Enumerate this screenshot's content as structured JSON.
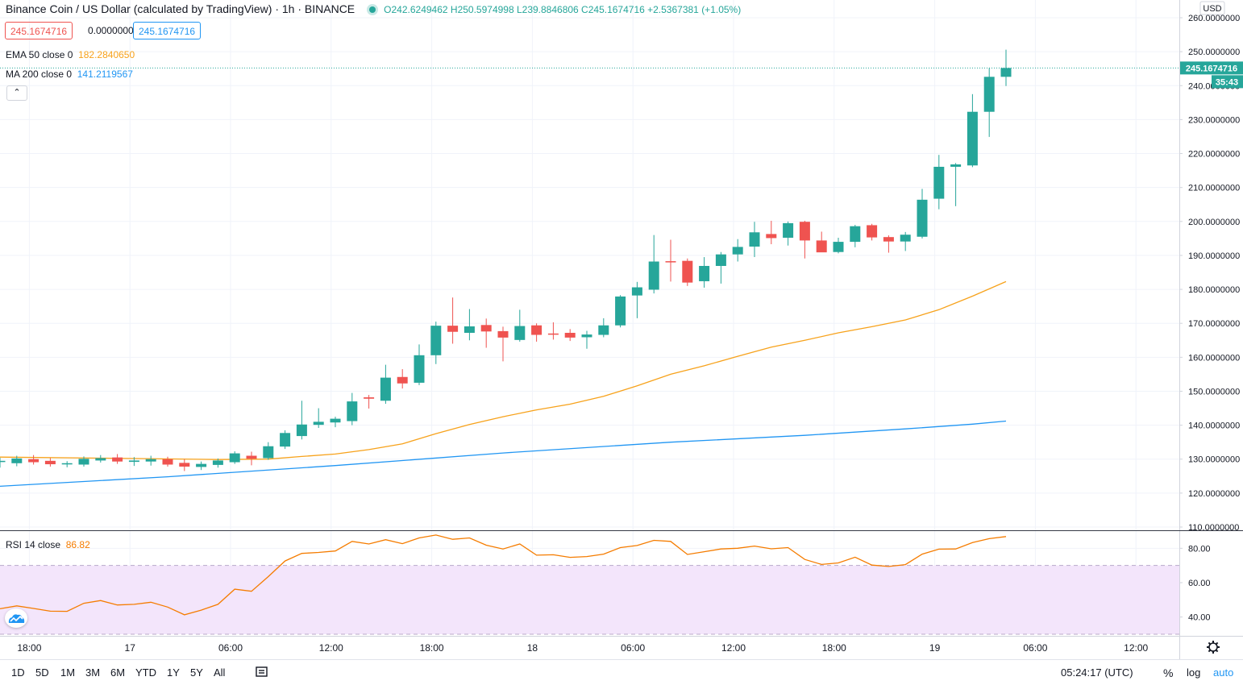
{
  "header": {
    "title": "Binance Coin / US Dollar (calculated by TradingView) · 1h · BINANCE",
    "ohlc": "O242.6249462  H250.5974998  L239.8846806  C245.1674716  +2.5367381 (+1.05%)",
    "bid": "245.1674716",
    "spread": "0.0000000",
    "ask": "245.1674716"
  },
  "indicators": {
    "ema_label": "EMA 50 close 0",
    "ema_value": "182.2840650",
    "ma_label": "MA 200 close 0",
    "ma_value": "141.2119567",
    "rsi_label": "RSI 14 close",
    "rsi_value": "86.82",
    "collapse_icon": "chevron-up-icon"
  },
  "price_axis": {
    "currency": "USD",
    "ticks": [
      "260.0000000",
      "250.0000000",
      "240.0000000",
      "230.0000000",
      "220.0000000",
      "210.0000000",
      "200.0000000",
      "190.0000000",
      "180.0000000",
      "170.0000000",
      "160.0000000",
      "150.0000000",
      "140.0000000",
      "130.0000000",
      "120.0000000",
      "110.0000000"
    ],
    "last_price_label": "245.1674716",
    "countdown": "35:43"
  },
  "rsi_axis": {
    "ticks": [
      "80.00",
      "60.00",
      "40.00"
    ]
  },
  "time_axis": {
    "ticks": [
      "18:00",
      "17",
      "06:00",
      "12:00",
      "18:00",
      "18",
      "06:00",
      "12:00",
      "18:00",
      "19",
      "06:00",
      "12:00"
    ]
  },
  "bottom_bar": {
    "ranges": [
      "1D",
      "5D",
      "1M",
      "3M",
      "6M",
      "YTD",
      "1Y",
      "5Y",
      "All"
    ],
    "clock": "05:24:17 (UTC)",
    "percent": "%",
    "log": "log",
    "auto": "auto",
    "compare_icon": "compare-icon",
    "settings_icon": "gear-icon"
  },
  "colors": {
    "up": "#26a69a",
    "down": "#ef5350",
    "ema": "#f7a21b",
    "ma": "#2196f3",
    "rsi": "#f57c00",
    "rsi_band": "#f3e5fb"
  },
  "chart_data": {
    "type": "candlestick",
    "interval": "1h",
    "symbol": "Binance Coin / US Dollar",
    "price_range": [
      110,
      260
    ],
    "rsi_range": [
      30,
      90
    ],
    "rsi_band": [
      30,
      70
    ],
    "candles": [
      {
        "o": 129.2,
        "h": 130.4,
        "l": 127.5,
        "c": 129.5
      },
      {
        "o": 128.8,
        "h": 131.0,
        "l": 127.9,
        "c": 130.2
      },
      {
        "o": 130.0,
        "h": 131.2,
        "l": 128.4,
        "c": 129.1
      },
      {
        "o": 129.5,
        "h": 130.3,
        "l": 127.8,
        "c": 128.5
      },
      {
        "o": 128.5,
        "h": 129.4,
        "l": 127.6,
        "c": 128.8
      },
      {
        "o": 128.4,
        "h": 130.8,
        "l": 127.8,
        "c": 130.1
      },
      {
        "o": 129.6,
        "h": 131.2,
        "l": 129.0,
        "c": 130.3
      },
      {
        "o": 130.5,
        "h": 131.5,
        "l": 128.6,
        "c": 129.3
      },
      {
        "o": 129.2,
        "h": 130.6,
        "l": 128.0,
        "c": 129.6
      },
      {
        "o": 129.3,
        "h": 131.0,
        "l": 128.1,
        "c": 130.0
      },
      {
        "o": 130.0,
        "h": 130.7,
        "l": 127.8,
        "c": 128.4
      },
      {
        "o": 128.9,
        "h": 130.0,
        "l": 126.5,
        "c": 127.8
      },
      {
        "o": 127.7,
        "h": 129.3,
        "l": 126.8,
        "c": 128.6
      },
      {
        "o": 128.3,
        "h": 130.2,
        "l": 127.5,
        "c": 129.6
      },
      {
        "o": 129.1,
        "h": 132.3,
        "l": 128.6,
        "c": 131.7
      },
      {
        "o": 131.0,
        "h": 132.2,
        "l": 128.2,
        "c": 130.1
      },
      {
        "o": 130.3,
        "h": 135.0,
        "l": 129.8,
        "c": 133.8
      },
      {
        "o": 133.7,
        "h": 138.5,
        "l": 133.0,
        "c": 137.7
      },
      {
        "o": 136.8,
        "h": 147.2,
        "l": 135.8,
        "c": 140.2
      },
      {
        "o": 140.1,
        "h": 145.0,
        "l": 139.2,
        "c": 141.0
      },
      {
        "o": 140.8,
        "h": 142.5,
        "l": 139.4,
        "c": 141.9
      },
      {
        "o": 141.2,
        "h": 149.5,
        "l": 140.0,
        "c": 147.0
      },
      {
        "o": 148.2,
        "h": 148.9,
        "l": 144.9,
        "c": 147.8
      },
      {
        "o": 147.2,
        "h": 157.8,
        "l": 146.3,
        "c": 154.0
      },
      {
        "o": 154.2,
        "h": 156.5,
        "l": 150.8,
        "c": 152.3
      },
      {
        "o": 152.5,
        "h": 163.8,
        "l": 151.8,
        "c": 160.6
      },
      {
        "o": 160.6,
        "h": 170.5,
        "l": 158.0,
        "c": 169.3
      },
      {
        "o": 169.3,
        "h": 177.6,
        "l": 164.0,
        "c": 167.5
      },
      {
        "o": 167.2,
        "h": 174.2,
        "l": 165.0,
        "c": 169.1
      },
      {
        "o": 169.5,
        "h": 171.4,
        "l": 162.8,
        "c": 167.6
      },
      {
        "o": 167.7,
        "h": 169.0,
        "l": 158.8,
        "c": 165.8
      },
      {
        "o": 165.1,
        "h": 174.0,
        "l": 164.6,
        "c": 169.2
      },
      {
        "o": 169.4,
        "h": 170.0,
        "l": 164.6,
        "c": 166.6
      },
      {
        "o": 167.0,
        "h": 170.3,
        "l": 165.2,
        "c": 166.8
      },
      {
        "o": 167.2,
        "h": 168.3,
        "l": 164.8,
        "c": 165.8
      },
      {
        "o": 165.9,
        "h": 167.8,
        "l": 162.5,
        "c": 166.7
      },
      {
        "o": 166.6,
        "h": 171.5,
        "l": 165.9,
        "c": 169.4
      },
      {
        "o": 169.4,
        "h": 178.3,
        "l": 168.8,
        "c": 177.9
      },
      {
        "o": 178.2,
        "h": 182.2,
        "l": 171.5,
        "c": 180.6
      },
      {
        "o": 179.9,
        "h": 196.0,
        "l": 178.8,
        "c": 188.2
      },
      {
        "o": 188.3,
        "h": 194.6,
        "l": 182.3,
        "c": 188.0
      },
      {
        "o": 188.4,
        "h": 189.1,
        "l": 181.0,
        "c": 182.0
      },
      {
        "o": 182.4,
        "h": 189.5,
        "l": 180.5,
        "c": 186.9
      },
      {
        "o": 186.9,
        "h": 191.0,
        "l": 181.7,
        "c": 190.3
      },
      {
        "o": 190.3,
        "h": 194.8,
        "l": 188.2,
        "c": 192.5
      },
      {
        "o": 192.6,
        "h": 199.9,
        "l": 189.5,
        "c": 196.8
      },
      {
        "o": 196.3,
        "h": 200.2,
        "l": 193.3,
        "c": 195.1
      },
      {
        "o": 195.2,
        "h": 200.0,
        "l": 192.9,
        "c": 199.5
      },
      {
        "o": 199.9,
        "h": 200.2,
        "l": 189.1,
        "c": 194.4
      },
      {
        "o": 194.4,
        "h": 197.0,
        "l": 191.2,
        "c": 190.9
      },
      {
        "o": 191.0,
        "h": 195.2,
        "l": 190.6,
        "c": 194.0
      },
      {
        "o": 194.0,
        "h": 199.0,
        "l": 192.4,
        "c": 198.6
      },
      {
        "o": 198.9,
        "h": 199.3,
        "l": 194.4,
        "c": 195.3
      },
      {
        "o": 195.4,
        "h": 195.9,
        "l": 190.8,
        "c": 194.1
      },
      {
        "o": 194.1,
        "h": 196.9,
        "l": 191.3,
        "c": 196.1
      },
      {
        "o": 195.5,
        "h": 209.6,
        "l": 195.0,
        "c": 206.4
      },
      {
        "o": 206.7,
        "h": 219.6,
        "l": 203.6,
        "c": 216.1
      },
      {
        "o": 216.1,
        "h": 217.2,
        "l": 204.5,
        "c": 216.8
      },
      {
        "o": 216.5,
        "h": 237.5,
        "l": 216.0,
        "c": 232.3
      },
      {
        "o": 232.3,
        "h": 245.2,
        "l": 224.9,
        "c": 242.6
      },
      {
        "o": 242.6,
        "h": 250.6,
        "l": 239.9,
        "c": 245.2
      }
    ],
    "ema50": [
      [
        0,
        130.6
      ],
      [
        6,
        130.3
      ],
      [
        13,
        129.9
      ],
      [
        16,
        130.0
      ],
      [
        18,
        130.8
      ],
      [
        20,
        131.5
      ],
      [
        22,
        132.8
      ],
      [
        24,
        134.5
      ],
      [
        26,
        137.5
      ],
      [
        28,
        140.2
      ],
      [
        30,
        142.5
      ],
      [
        32,
        144.5
      ],
      [
        34,
        146.2
      ],
      [
        36,
        148.5
      ],
      [
        38,
        151.6
      ],
      [
        40,
        155.0
      ],
      [
        42,
        157.5
      ],
      [
        44,
        160.3
      ],
      [
        46,
        163.0
      ],
      [
        48,
        165.0
      ],
      [
        50,
        167.2
      ],
      [
        52,
        169.0
      ],
      [
        54,
        171.0
      ],
      [
        56,
        174.0
      ],
      [
        58,
        178.0
      ],
      [
        60,
        182.3
      ]
    ],
    "ma200": [
      [
        0,
        122.0
      ],
      [
        10,
        124.8
      ],
      [
        20,
        128.1
      ],
      [
        30,
        131.8
      ],
      [
        40,
        135.0
      ],
      [
        48,
        137.0
      ],
      [
        54,
        138.9
      ],
      [
        58,
        140.3
      ],
      [
        60,
        141.2
      ]
    ],
    "rsi": [
      44.8,
      46.5,
      45.0,
      43.4,
      43.3,
      48.0,
      49.6,
      47.0,
      47.4,
      48.6,
      45.8,
      41.3,
      44.0,
      47.4,
      56.2,
      55.0,
      63.5,
      72.6,
      77.0,
      77.6,
      78.4,
      84.0,
      82.5,
      85.0,
      82.7,
      86.0,
      87.7,
      85.2,
      86.0,
      81.8,
      79.6,
      82.5,
      76.0,
      76.2,
      74.7,
      75.2,
      76.6,
      80.4,
      81.6,
      84.6,
      84.0,
      76.4,
      78.0,
      79.6,
      80.0,
      81.3,
      79.7,
      80.4,
      73.5,
      70.6,
      71.5,
      74.8,
      70.2,
      69.4,
      70.5,
      76.6,
      79.5,
      79.6,
      83.3,
      85.6,
      86.8
    ]
  }
}
